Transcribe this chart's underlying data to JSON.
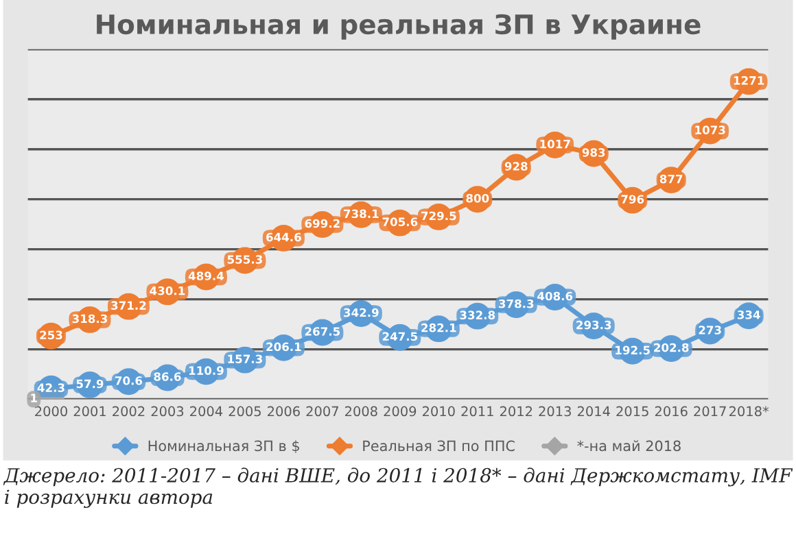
{
  "chart_data": {
    "type": "line",
    "title": "Номинальная и реальная ЗП в Украине",
    "categories": [
      "2000",
      "2001",
      "2002",
      "2003",
      "2004",
      "2005",
      "2006",
      "2007",
      "2008",
      "2009",
      "2010",
      "2011",
      "2012",
      "2013",
      "2014",
      "2015",
      "2016",
      "2017",
      "2018*"
    ],
    "series": [
      {
        "name": "Номинальная ЗП в $",
        "color": "#5b9bd5",
        "values": [
          42.3,
          57.9,
          70.6,
          86.6,
          110.9,
          157.3,
          206.1,
          267.5,
          342.9,
          247.5,
          282.1,
          332.8,
          378.3,
          408.6,
          293.3,
          192.5,
          202.8,
          273,
          334
        ]
      },
      {
        "name": "Реальная ЗП по ППС",
        "color": "#ed7d31",
        "values": [
          253,
          318.3,
          371.2,
          430.1,
          489.4,
          555.3,
          644.6,
          699.2,
          738.1,
          705.6,
          729.5,
          800,
          928,
          1017,
          983,
          796,
          877,
          1073,
          1271
        ]
      },
      {
        "name": "*-на май 2018",
        "color": "#a5a5a5",
        "values": [
          1,
          null,
          null,
          null,
          null,
          null,
          null,
          null,
          null,
          null,
          null,
          null,
          null,
          null,
          null,
          null,
          null,
          null,
          null
        ]
      }
    ],
    "ylim": [
      0,
      1400
    ],
    "yticks": [
      {
        "value": 0,
        "label": null
      },
      {
        "value": 200,
        "label": null
      },
      {
        "value": 400,
        "label": null
      },
      {
        "value": 600,
        "label": null
      },
      {
        "value": 800,
        "label": null
      },
      {
        "value": 1000,
        "label": null
      },
      {
        "value": 1200,
        "label": null
      },
      {
        "value": 1400,
        "label": null
      }
    ],
    "tick_labels": "x",
    "grid": "y",
    "legend": "bottom",
    "marker": "circle",
    "line_style": "solid",
    "data_labels": true,
    "annotations": [
      "Джерело: 2011-2017 – дані ВШЕ, до 2011 і 2018* – дані Держкомстату, IMF і розрахунки автора"
    ]
  }
}
